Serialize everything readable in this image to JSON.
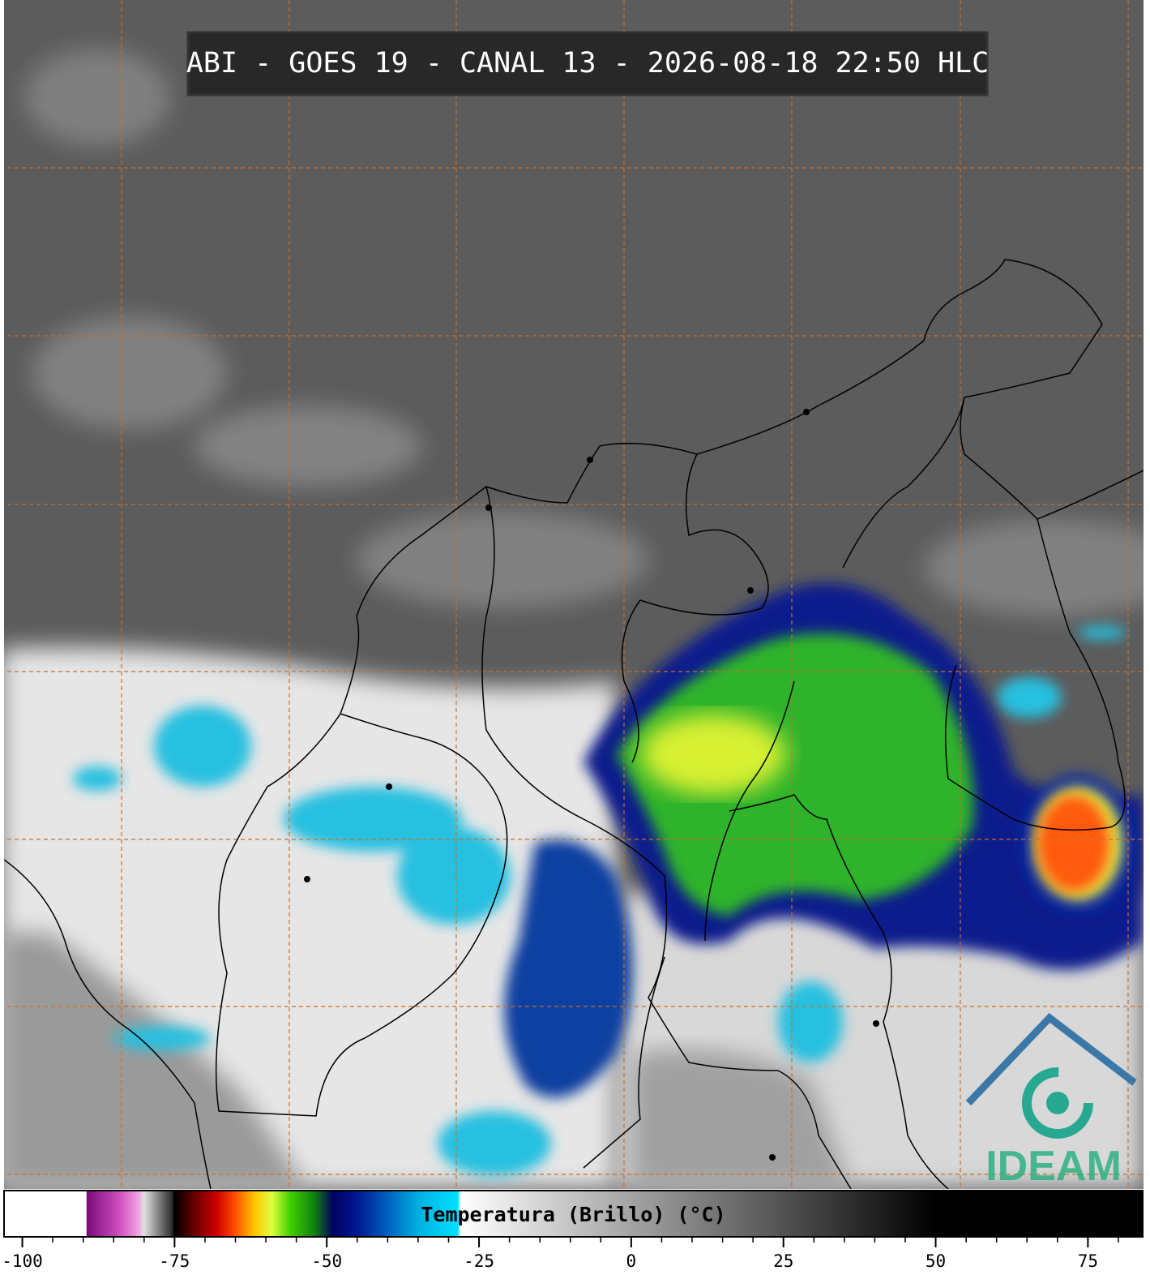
{
  "title": "ABI - GOES 19 - CANAL 13 - 2026-08-18 22:50 HLC",
  "logo": "IDEAM",
  "chart_data": {
    "type": "colorbar",
    "xlabel": "Temperatura (Brillo) (°C)",
    "xlim": [
      -103,
      84
    ],
    "xticks": [
      -100,
      -75,
      -50,
      -25,
      0,
      25,
      50,
      75
    ],
    "xminorticks": [
      -95,
      -90,
      -85,
      -80,
      -70,
      -65,
      -60,
      -55,
      -45,
      -40,
      -35,
      -30,
      -20,
      -15,
      -10,
      -5,
      5,
      10,
      15,
      20,
      30,
      35,
      40,
      45,
      55,
      60,
      65,
      70,
      80
    ],
    "colormap": [
      {
        "value": -103,
        "color": "#ffffff"
      },
      {
        "value": -89.5,
        "color": "#ffffff"
      },
      {
        "value": -89.4,
        "color": "#7a0a7a"
      },
      {
        "value": -84,
        "color": "#d050c0"
      },
      {
        "value": -81,
        "color": "#f0a0e0"
      },
      {
        "value": -80,
        "color": "#e0e0e0"
      },
      {
        "value": -75.5,
        "color": "#303030"
      },
      {
        "value": -75,
        "color": "#000000"
      },
      {
        "value": -72,
        "color": "#600000"
      },
      {
        "value": -68,
        "color": "#d00000"
      },
      {
        "value": -65,
        "color": "#ff5000"
      },
      {
        "value": -62,
        "color": "#ffc000"
      },
      {
        "value": -59,
        "color": "#e0ff40"
      },
      {
        "value": -56,
        "color": "#40d000"
      },
      {
        "value": -52,
        "color": "#108010"
      },
      {
        "value": -49,
        "color": "#000060"
      },
      {
        "value": -45,
        "color": "#001890"
      },
      {
        "value": -40,
        "color": "#0060c0"
      },
      {
        "value": -35,
        "color": "#00b0e0"
      },
      {
        "value": -28.5,
        "color": "#00e0ff"
      },
      {
        "value": -28,
        "color": "#ffffff"
      },
      {
        "value": 50,
        "color": "#000000"
      },
      {
        "value": 84,
        "color": "#000000"
      }
    ]
  }
}
